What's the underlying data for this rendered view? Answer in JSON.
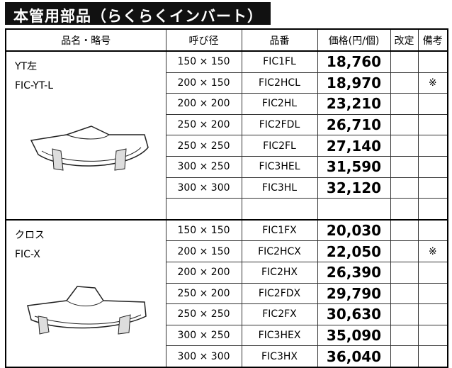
{
  "header": {
    "title": "本管用部品（らくらくインバート）"
  },
  "table": {
    "columns": [
      "品名・略号",
      "呼び径",
      "品番",
      "価格(円/個)",
      "改定",
      "備考"
    ],
    "groups": [
      {
        "name": "YT左",
        "code": "FIC-YT-L",
        "rows": [
          {
            "size": "150 × 150",
            "part": "FIC1FL",
            "price": "18,760"
          },
          {
            "size": "200 × 150",
            "part": "FIC2HCL",
            "price": "18,970",
            "note": "※"
          },
          {
            "size": "200 × 200",
            "part": "FIC2HL",
            "price": "23,210"
          },
          {
            "size": "250 × 200",
            "part": "FIC2FDL",
            "price": "26,710"
          },
          {
            "size": "250 × 250",
            "part": "FIC2FL",
            "price": "27,140"
          },
          {
            "size": "300 × 250",
            "part": "FIC3HEL",
            "price": "31,590"
          },
          {
            "size": "300 × 300",
            "part": "FIC3HL",
            "price": "32,120"
          }
        ]
      },
      {
        "name": "クロス",
        "code": "FIC-X",
        "rows": [
          {
            "size": "150 × 150",
            "part": "FIC1FX",
            "price": "20,030"
          },
          {
            "size": "200 × 150",
            "part": "FIC2HCX",
            "price": "22,050",
            "note": "※"
          },
          {
            "size": "200 × 200",
            "part": "FIC2HX",
            "price": "26,390"
          },
          {
            "size": "250 × 200",
            "part": "FIC2FDX",
            "price": "29,790"
          },
          {
            "size": "250 × 250",
            "part": "FIC2FX",
            "price": "30,630"
          },
          {
            "size": "300 × 250",
            "part": "FIC3HEX",
            "price": "35,090"
          },
          {
            "size": "300 × 300",
            "part": "FIC3HX",
            "price": "36,040"
          }
        ]
      }
    ]
  }
}
